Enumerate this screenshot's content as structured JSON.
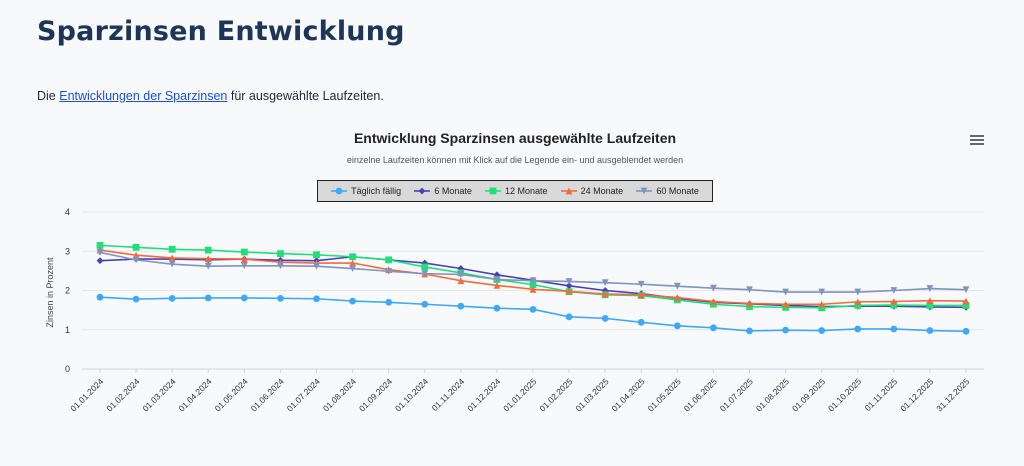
{
  "page": {
    "title": "Sparzinsen Entwicklung",
    "intro_prefix": "Die ",
    "intro_link": "Entwicklungen der Sparzinsen",
    "intro_suffix": " für ausgewählte Laufzeiten."
  },
  "menu": {
    "icon": "hamburger-menu-icon"
  },
  "chart_data": {
    "type": "line",
    "title": "Entwicklung Sparzinsen ausgewählte Laufzeiten",
    "subtitle": "einzelne Laufzeiten können mit Klick auf die Legende ein- und ausgeblendet werden",
    "ylabel": "Zinsen in Prozent",
    "xlabel": "",
    "ylim": [
      0,
      4
    ],
    "yticks": [
      "0",
      "1",
      "2",
      "3",
      "4"
    ],
    "grid": true,
    "legend_position": "top",
    "categories": [
      "01.01.2024",
      "01.02.2024",
      "01.03.2024",
      "01.04.2024",
      "01.05.2024",
      "01.06.2024",
      "01.07.2024",
      "01.08.2024",
      "01.09.2024",
      "01.10.2024",
      "01.11.2024",
      "01.12.2024",
      "01.01.2025",
      "01.02.2025",
      "01.03.2025",
      "01.04.2025",
      "01.05.2025",
      "01.06.2025",
      "01.07.2025",
      "01.08.2025",
      "01.09.2025",
      "01.10.2025",
      "01.11.2025",
      "01.12.2025",
      "31.12.2025"
    ],
    "series": [
      {
        "name": "Täglich fällig",
        "color": "#3fa9f5",
        "marker": "circle",
        "values": [
          1.83,
          1.78,
          1.8,
          1.81,
          1.81,
          1.8,
          1.79,
          1.73,
          1.7,
          1.65,
          1.6,
          1.55,
          1.52,
          1.33,
          1.29,
          1.19,
          1.1,
          1.05,
          0.97,
          0.99,
          0.98,
          1.02,
          1.02,
          0.98,
          0.96
        ]
      },
      {
        "name": "6 Monate",
        "color": "#4b3fb5",
        "marker": "diamond",
        "values": [
          2.76,
          2.8,
          2.8,
          2.78,
          2.8,
          2.77,
          2.76,
          2.86,
          2.78,
          2.7,
          2.56,
          2.4,
          2.26,
          2.12,
          2.0,
          1.92,
          1.8,
          1.7,
          1.66,
          1.62,
          1.59,
          1.6,
          1.6,
          1.58,
          1.57
        ]
      },
      {
        "name": "12 Monate",
        "color": "#1ee07a",
        "marker": "square",
        "values": [
          3.15,
          3.1,
          3.05,
          3.03,
          2.98,
          2.94,
          2.91,
          2.86,
          2.78,
          2.6,
          2.45,
          2.28,
          2.15,
          1.97,
          1.89,
          1.87,
          1.76,
          1.65,
          1.59,
          1.57,
          1.56,
          1.62,
          1.63,
          1.62,
          1.62
        ]
      },
      {
        "name": "24 Monate",
        "color": "#f36b3c",
        "marker": "triangle",
        "values": [
          3.03,
          2.9,
          2.83,
          2.81,
          2.8,
          2.72,
          2.7,
          2.7,
          2.53,
          2.42,
          2.25,
          2.13,
          2.03,
          1.98,
          1.91,
          1.89,
          1.82,
          1.72,
          1.67,
          1.65,
          1.65,
          1.71,
          1.72,
          1.74,
          1.73
        ]
      },
      {
        "name": "60 Monate",
        "color": "#8094bd",
        "marker": "triangle-down",
        "values": [
          2.97,
          2.78,
          2.67,
          2.62,
          2.63,
          2.63,
          2.62,
          2.56,
          2.49,
          2.43,
          2.41,
          2.28,
          2.25,
          2.23,
          2.2,
          2.16,
          2.11,
          2.06,
          2.02,
          1.96,
          1.96,
          1.96,
          2.0,
          2.05,
          2.02
        ]
      }
    ]
  }
}
